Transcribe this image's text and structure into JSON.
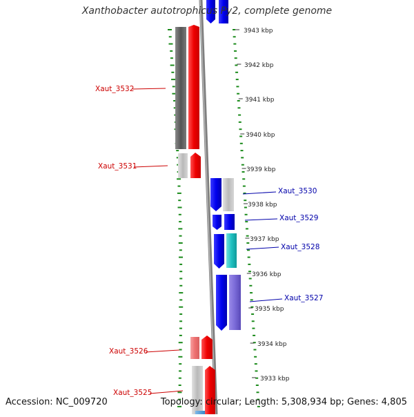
{
  "header": {
    "title": "Xanthobacter autotrophicus Py2, complete genome"
  },
  "footer": {
    "accession": "Accession: NC_009720",
    "topology": "Topology: circular; Length: 5,308,934 bp; Genes: 4,805"
  },
  "ruler": {
    "labels": [
      "3943 kbp",
      "3942 kbp",
      "3941 kbp",
      "3940 kbp",
      "3939 kbp",
      "3938 kbp",
      "3937 kbp",
      "3936 kbp",
      "3935 kbp",
      "3934 kbp",
      "3933 kbp"
    ]
  },
  "genes": {
    "left": [
      "Xaut_3532",
      "Xaut_3531",
      "Xaut_3526",
      "Xaut_3525"
    ],
    "right": [
      "Xaut_3530",
      "Xaut_3529",
      "Xaut_3528",
      "Xaut_3527"
    ]
  },
  "colors": {
    "backbone": "#888888",
    "dotted_guide": "#1a8a1a",
    "forward_label": "#cc0000",
    "reverse_label": "#0000aa",
    "red_gene": "#ff0000",
    "light_red_gene": "#f08080",
    "blue_gene": "#0000ee",
    "cyan_gene": "#20c0c0",
    "purple_gene": "#7a6ad8",
    "dark_grey": "#666666",
    "light_grey": "#c0c0c0"
  }
}
